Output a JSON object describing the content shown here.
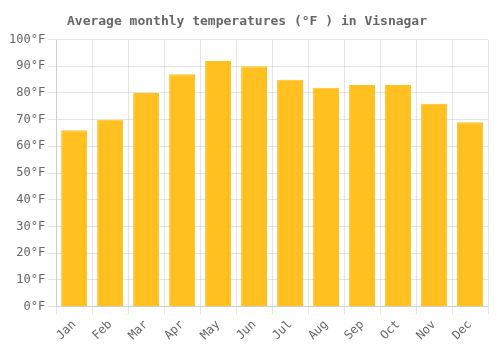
{
  "chart_data": {
    "type": "bar",
    "title": "Average monthly temperatures (°F ) in Visnagar",
    "categories": [
      "Jan",
      "Feb",
      "Mar",
      "Apr",
      "May",
      "Jun",
      "Jul",
      "Aug",
      "Sep",
      "Oct",
      "Nov",
      "Dec"
    ],
    "values": [
      66,
      70,
      80,
      87,
      92,
      90,
      85,
      82,
      83,
      83,
      76,
      69
    ],
    "color": "#FFC020",
    "ylim": [
      0,
      100
    ],
    "yticks": [
      {
        "value": 0,
        "label": "0°F"
      },
      {
        "value": 10,
        "label": "10°F"
      },
      {
        "value": 20,
        "label": "20°F"
      },
      {
        "value": 30,
        "label": "30°F"
      },
      {
        "value": 40,
        "label": "40°F"
      },
      {
        "value": 50,
        "label": "50°F"
      },
      {
        "value": 60,
        "label": "60°F"
      },
      {
        "value": 70,
        "label": "70°F"
      },
      {
        "value": 80,
        "label": "80°F"
      },
      {
        "value": 90,
        "label": "90°F"
      },
      {
        "value": 100,
        "label": "100°F"
      }
    ],
    "grid": true
  }
}
